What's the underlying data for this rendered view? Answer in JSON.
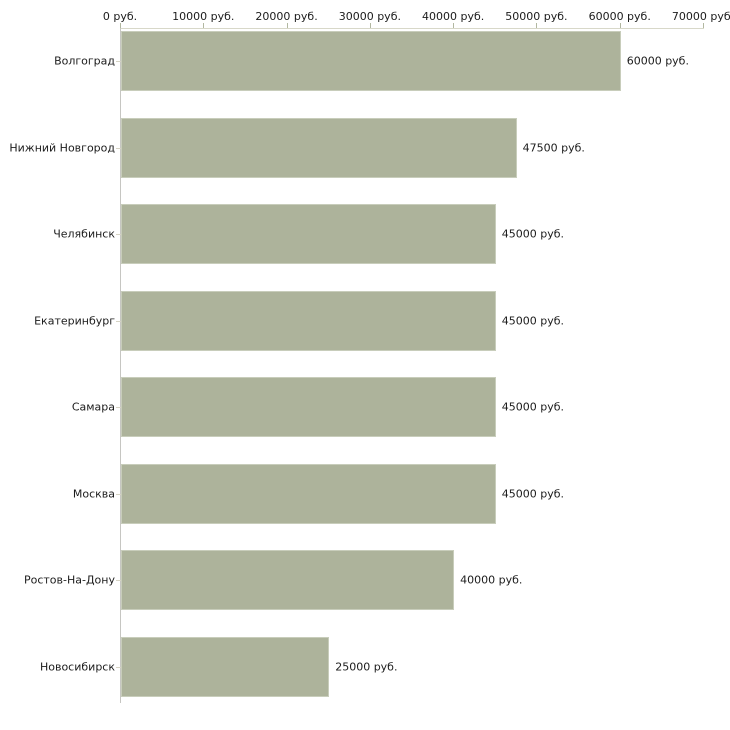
{
  "chart_data": {
    "type": "bar",
    "orientation": "horizontal",
    "title": "",
    "categories": [
      "Волгоград",
      "Нижний Новгород",
      "Челябинск",
      "Екатеринбург",
      "Самара",
      "Москва",
      "Ростов-На-Дону",
      "Новосибирск"
    ],
    "values": [
      60000,
      47500,
      45000,
      45000,
      45000,
      45000,
      40000,
      25000
    ],
    "value_labels": [
      "60000 руб.",
      "47500 руб.",
      "45000 руб.",
      "45000 руб.",
      "45000 руб.",
      "45000 руб.",
      "40000 руб.",
      "25000 руб."
    ],
    "x_axis": {
      "position": "top",
      "range": [
        0,
        70000
      ],
      "ticks": [
        0,
        10000,
        20000,
        30000,
        40000,
        50000,
        60000,
        70000
      ],
      "tick_labels": [
        "0 руб.",
        "10000 руб.",
        "20000 руб.",
        "30000 руб.",
        "40000 руб.",
        "50000 руб.",
        "60000 руб.",
        "70000 руб."
      ]
    },
    "legend": "none",
    "grid": false,
    "colors": {
      "background": "#ffffff",
      "bar_fill": "#adb39b",
      "bar_border": "#c8cdbb",
      "x_axis_line": "#d8d8c9",
      "y_axis_line": "#c6c6c2",
      "top_tick": "#b2b8a1",
      "left_tick": "#d6d3c4",
      "text": "#1c1c1c"
    }
  }
}
